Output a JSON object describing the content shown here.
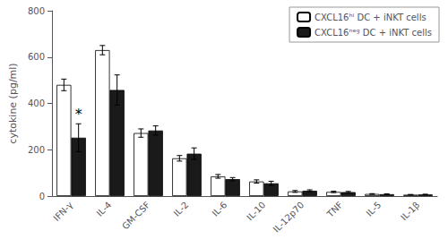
{
  "chart_data": {
    "type": "bar",
    "categories": [
      "IFN-γ",
      "IL-4",
      "GM-CSF",
      "IL-2",
      "IL-6",
      "IL-10",
      "IL-12p70",
      "TNF",
      "IL-5",
      "IL-1β"
    ],
    "series": [
      {
        "name": "CXCL16ʰⁱ DC + iNKT cells",
        "color": "#ffffff",
        "values": [
          480,
          630,
          272,
          163,
          85,
          63,
          20,
          18,
          9,
          6
        ],
        "errors": [
          25,
          20,
          18,
          12,
          8,
          7,
          4,
          3,
          1.5,
          1
        ]
      },
      {
        "name": "CXCL16ⁿᵉᵍ DC + iNKT cells",
        "color": "#1a1a1a",
        "values": [
          252,
          458,
          283,
          183,
          73,
          55,
          23,
          17,
          8,
          7
        ],
        "errors": [
          60,
          65,
          20,
          25,
          7,
          9,
          4,
          3,
          1.5,
          1
        ]
      }
    ],
    "ylabel": "cytokine (pg/ml)",
    "ylim": [
      0,
      800
    ],
    "yticks": [
      0,
      200,
      400,
      600,
      800
    ],
    "grid": false,
    "legend": "upper right",
    "annotations": [
      {
        "text": "*",
        "x": "IFN-γ",
        "y": 324
      }
    ]
  }
}
